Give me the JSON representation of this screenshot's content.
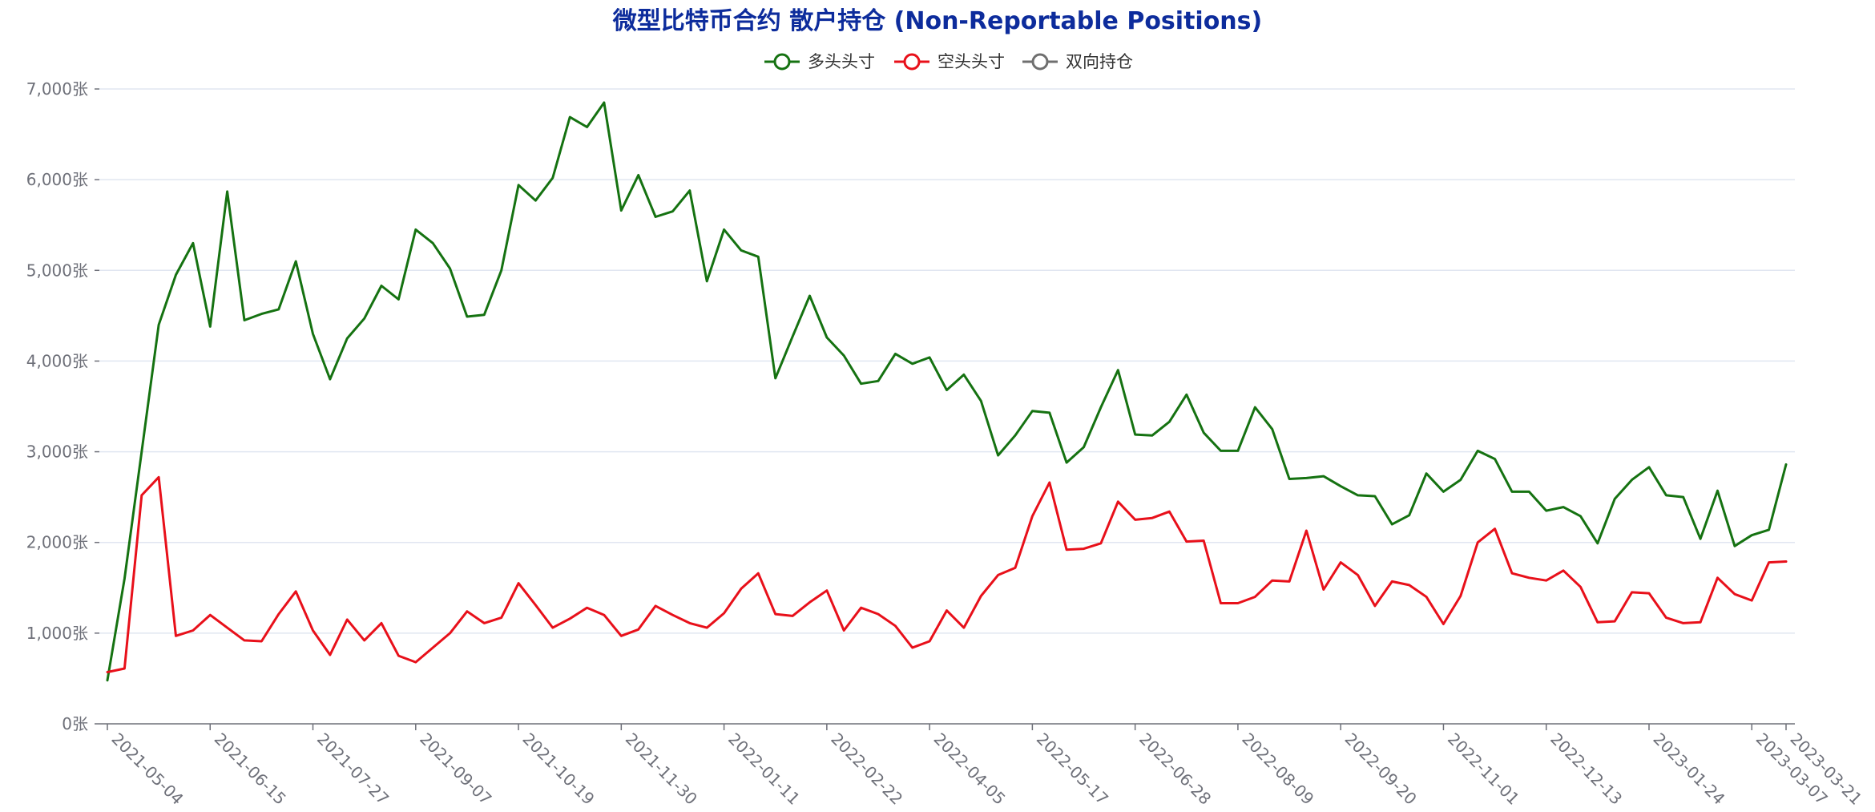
{
  "chart_data": {
    "type": "line",
    "title": "微型比特币合约 散户持仓 (Non-Reportable Positions)",
    "title_color": "#0d2c9c",
    "y_unit": "张",
    "ylim": [
      0,
      7000
    ],
    "y_ticks": [
      0,
      1000,
      2000,
      3000,
      4000,
      5000,
      6000,
      7000
    ],
    "y_tick_labels": [
      "0张",
      "1,000张",
      "2,000张",
      "3,000张",
      "4,000张",
      "5,000张",
      "6,000张",
      "7,000张"
    ],
    "grid": true,
    "legend_position": "top-center",
    "x_tick_labels": [
      "2021-05-04",
      "2021-06-15",
      "2021-07-27",
      "2021-09-07",
      "2021-10-19",
      "2021-11-30",
      "2022-01-11",
      "2022-02-22",
      "2022-04-05",
      "2022-05-17",
      "2022-06-28",
      "2022-08-09",
      "2022-09-20",
      "2022-11-01",
      "2022-12-13",
      "2023-01-24",
      "2023-03-07",
      "2023-03-21"
    ],
    "x_tick_index": [
      0,
      6,
      12,
      18,
      24,
      30,
      36,
      42,
      48,
      54,
      60,
      66,
      72,
      78,
      84,
      90,
      96,
      98
    ],
    "series": [
      {
        "name": "多头头寸",
        "color": "#157211",
        "values": [
          480,
          1600,
          3000,
          4400,
          4950,
          5300,
          4380,
          5870,
          4450,
          4520,
          4570,
          5100,
          4300,
          3800,
          4250,
          4470,
          4830,
          4680,
          5450,
          5300,
          5020,
          4490,
          4510,
          5000,
          5940,
          5770,
          6020,
          6690,
          6580,
          6850,
          5660,
          6050,
          5590,
          5650,
          5880,
          4880,
          5450,
          5220,
          5150,
          3810,
          4270,
          4720,
          4260,
          4060,
          3750,
          3780,
          4080,
          3970,
          4040,
          3680,
          3850,
          3560,
          2960,
          3180,
          3450,
          3430,
          2880,
          3050,
          3490,
          3900,
          3190,
          3180,
          3330,
          3630,
          3210,
          3010,
          3010,
          3490,
          3250,
          2700,
          2710,
          2730,
          2620,
          2520,
          2510,
          2200,
          2300,
          2760,
          2560,
          2690,
          3010,
          2920,
          2560,
          2560,
          2350,
          2390,
          2290,
          1990,
          2480,
          2690,
          2830,
          2520,
          2500,
          2040,
          2570,
          1960,
          2080,
          2140,
          2860
        ]
      },
      {
        "name": "空头头寸",
        "color": "#e8101a",
        "values": [
          570,
          610,
          2520,
          2720,
          970,
          1030,
          1200,
          1060,
          920,
          910,
          1210,
          1460,
          1030,
          760,
          1150,
          920,
          1110,
          750,
          680,
          840,
          1000,
          1240,
          1110,
          1170,
          1550,
          1310,
          1060,
          1160,
          1280,
          1200,
          970,
          1040,
          1300,
          1200,
          1110,
          1060,
          1220,
          1490,
          1660,
          1210,
          1190,
          1340,
          1470,
          1030,
          1280,
          1210,
          1080,
          840,
          910,
          1250,
          1060,
          1410,
          1640,
          1720,
          2290,
          2660,
          1920,
          1930,
          1990,
          2450,
          2250,
          2270,
          2340,
          2010,
          2020,
          1330,
          1330,
          1400,
          1580,
          1570,
          2130,
          1480,
          1780,
          1640,
          1300,
          1570,
          1530,
          1400,
          1100,
          1410,
          2000,
          2150,
          1660,
          1610,
          1580,
          1690,
          1510,
          1120,
          1130,
          1450,
          1440,
          1170,
          1110,
          1120,
          1610,
          1430,
          1360,
          1780,
          1790
        ]
      },
      {
        "name": "双向持仓",
        "color": "#6f6f6f",
        "values": []
      }
    ]
  }
}
